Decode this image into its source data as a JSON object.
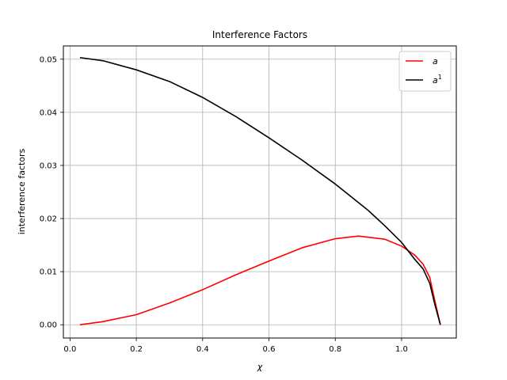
{
  "chart_data": {
    "type": "line",
    "title": "Interference Factors",
    "xlabel": "χ",
    "ylabel": "interference factors",
    "xlim": [
      -0.02,
      1.165
    ],
    "ylim": [
      -0.0025,
      0.0525
    ],
    "xticks": [
      0.0,
      0.2,
      0.4,
      0.6,
      0.8,
      1.0
    ],
    "xtick_labels": [
      "0.0",
      "0.2",
      "0.4",
      "0.6",
      "0.8",
      "1.0"
    ],
    "yticks": [
      0.0,
      0.01,
      0.02,
      0.03,
      0.04,
      0.05
    ],
    "ytick_labels": [
      "0.00",
      "0.01",
      "0.02",
      "0.03",
      "0.04",
      "0.05"
    ],
    "grid": true,
    "legend_position": "top-right",
    "series": [
      {
        "name": "a",
        "legend_base": "a",
        "legend_sup": "",
        "color": "#ff0000",
        "x": [
          0.03,
          0.1,
          0.2,
          0.3,
          0.4,
          0.5,
          0.6,
          0.7,
          0.8,
          0.87,
          0.95,
          1.0,
          1.04,
          1.065,
          1.085,
          1.1,
          1.117
        ],
        "y": [
          0.0,
          0.0006,
          0.0019,
          0.0041,
          0.0066,
          0.0094,
          0.012,
          0.0145,
          0.0162,
          0.0167,
          0.0161,
          0.0148,
          0.0131,
          0.0114,
          0.0089,
          0.0046,
          0.0
        ]
      },
      {
        "name": "a^1",
        "legend_base": "a",
        "legend_sup": "1",
        "color": "#000000",
        "x": [
          0.03,
          0.1,
          0.2,
          0.3,
          0.4,
          0.5,
          0.6,
          0.7,
          0.8,
          0.9,
          0.95,
          1.0,
          1.04,
          1.065,
          1.085,
          1.1,
          1.117
        ],
        "y": [
          0.0503,
          0.0497,
          0.048,
          0.0458,
          0.0428,
          0.0392,
          0.0352,
          0.031,
          0.0265,
          0.0215,
          0.0186,
          0.0155,
          0.0123,
          0.0105,
          0.0078,
          0.0039,
          0.0
        ]
      }
    ]
  }
}
